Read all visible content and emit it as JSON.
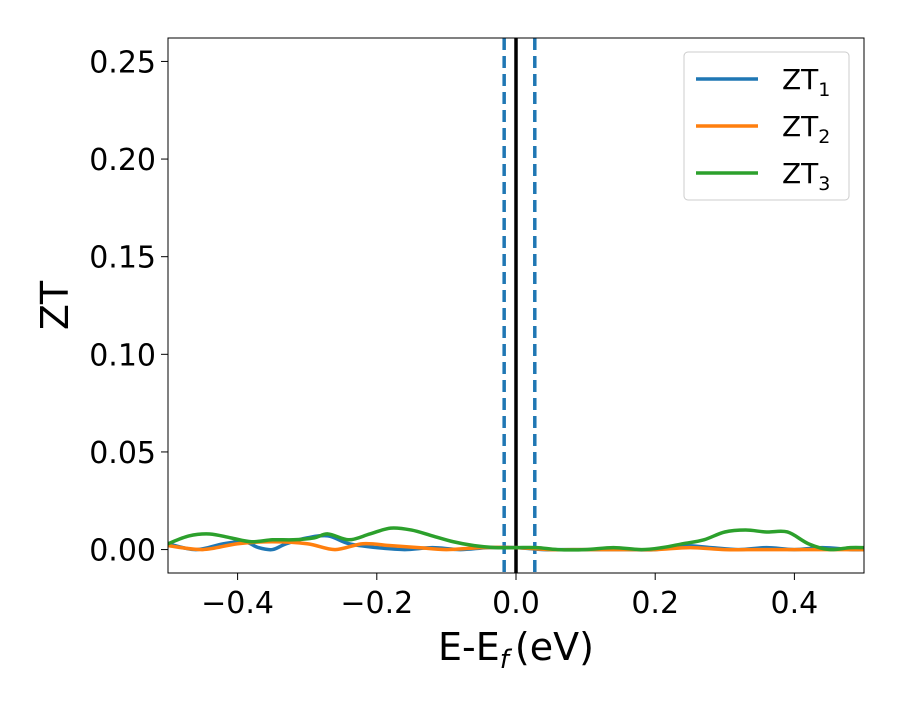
{
  "chart_data": {
    "type": "line",
    "title": "",
    "xlabel": "E-E",
    "xlabel_sub": "f",
    "xlabel_unit": "(eV)",
    "ylabel": "ZT",
    "xlim": [
      -0.5,
      0.5
    ],
    "ylim": [
      -0.012,
      0.262
    ],
    "x_ticks": [
      -0.4,
      -0.2,
      0.0,
      0.2,
      0.4
    ],
    "x_tick_labels": [
      "−0.4",
      "−0.2",
      "0.0",
      "0.2",
      "0.4"
    ],
    "y_ticks": [
      0.0,
      0.05,
      0.1,
      0.15,
      0.2,
      0.25
    ],
    "y_tick_labels": [
      "0.00",
      "0.05",
      "0.10",
      "0.15",
      "0.20",
      "0.25"
    ],
    "grid": false,
    "legend_position": "top-right",
    "vertical_lines": [
      {
        "x": -0.017,
        "style": "dashed",
        "color": "#1f77b4"
      },
      {
        "x": 0.0,
        "style": "solid",
        "color": "#000000"
      },
      {
        "x": 0.027,
        "style": "dashed",
        "color": "#1f77b4"
      }
    ],
    "series": [
      {
        "name": "ZT",
        "sub": "1",
        "color": "#1f77b4",
        "x": [
          -0.5,
          -0.46,
          -0.42,
          -0.39,
          -0.37,
          -0.35,
          -0.33,
          -0.3,
          -0.27,
          -0.24,
          -0.2,
          -0.16,
          -0.12,
          -0.08,
          -0.04,
          0.0,
          0.04,
          0.08,
          0.12,
          0.16,
          0.2,
          0.24,
          0.28,
          0.32,
          0.36,
          0.4,
          0.44,
          0.48,
          0.5
        ],
        "y": [
          0.003,
          0.0,
          0.003,
          0.004,
          0.001,
          0.0,
          0.003,
          0.006,
          0.007,
          0.003,
          0.001,
          0.0,
          0.001,
          0.0,
          0.001,
          0.001,
          0.0,
          0.0,
          0.0,
          0.0,
          0.0,
          0.002,
          0.001,
          0.0,
          0.001,
          0.0,
          0.001,
          0.0,
          0.0
        ]
      },
      {
        "name": "ZT",
        "sub": "2",
        "color": "#ff7f0e",
        "x": [
          -0.5,
          -0.45,
          -0.4,
          -0.35,
          -0.3,
          -0.26,
          -0.22,
          -0.18,
          -0.14,
          -0.1,
          -0.05,
          0.0,
          0.05,
          0.1,
          0.15,
          0.2,
          0.25,
          0.3,
          0.35,
          0.4,
          0.45,
          0.5
        ],
        "y": [
          0.002,
          0.0,
          0.003,
          0.004,
          0.003,
          0.0,
          0.003,
          0.002,
          0.001,
          0.0,
          0.001,
          0.001,
          0.0,
          0.0,
          0.0,
          0.0,
          0.001,
          0.0,
          0.0,
          0.0,
          0.0,
          0.0
        ]
      },
      {
        "name": "ZT",
        "sub": "3",
        "color": "#2ca02c",
        "x": [
          -0.5,
          -0.47,
          -0.44,
          -0.41,
          -0.38,
          -0.35,
          -0.32,
          -0.29,
          -0.27,
          -0.24,
          -0.21,
          -0.18,
          -0.15,
          -0.12,
          -0.09,
          -0.06,
          -0.03,
          0.0,
          0.03,
          0.06,
          0.1,
          0.14,
          0.18,
          0.21,
          0.24,
          0.27,
          0.3,
          0.33,
          0.36,
          0.39,
          0.42,
          0.45,
          0.48,
          0.5
        ],
        "y": [
          0.003,
          0.007,
          0.008,
          0.006,
          0.004,
          0.005,
          0.005,
          0.006,
          0.008,
          0.005,
          0.008,
          0.011,
          0.01,
          0.007,
          0.004,
          0.002,
          0.001,
          0.001,
          0.001,
          0.0,
          0.0,
          0.001,
          0.0,
          0.001,
          0.003,
          0.005,
          0.009,
          0.01,
          0.009,
          0.009,
          0.003,
          0.0,
          0.001,
          0.001
        ]
      }
    ]
  }
}
